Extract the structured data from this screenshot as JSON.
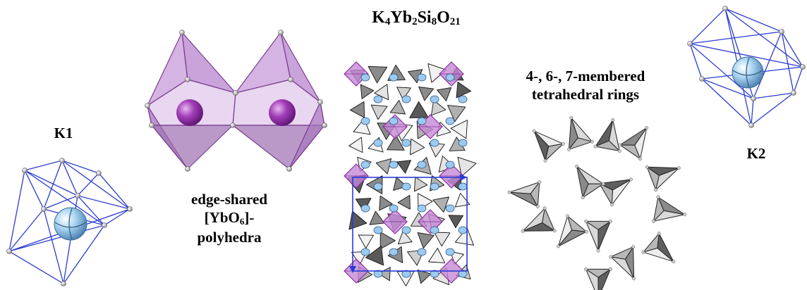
{
  "title": {
    "prefix": "K",
    "n1": "4",
    "el2": "Yb",
    "n2": "2",
    "el3": "Si",
    "n3": "8",
    "el4": "O",
    "n4": "21"
  },
  "labels": {
    "k1": "K1",
    "k2": "K2",
    "rings_line1": "4-, 6-, 7-membered",
    "rings_line2": "tetrahedral rings",
    "edge_line1": "edge-shared",
    "edge_line2_pre": "[YbO",
    "edge_line2_sub": "6",
    "edge_line2_post": "]-",
    "edge_line3": "polyhedra"
  },
  "colors": {
    "k_cage_edges": "#2b3bd1",
    "k_atom": "#8fc4ea",
    "yb_polyhedron": "#c79ad8",
    "yb_atom": "#a033b5",
    "tetrahedron_light": "#e6e6e6",
    "tetrahedron_dark": "#6e6e6e",
    "unit_cell": "#2a3bd6"
  }
}
